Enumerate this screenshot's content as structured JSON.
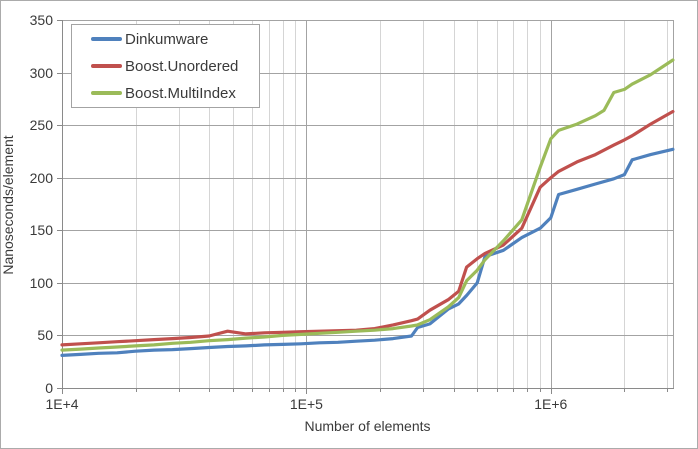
{
  "window": {
    "background": "#ffffff",
    "border_color": "#ababab"
  },
  "chart_data": {
    "type": "line",
    "title": "",
    "xlabel": "Number of elements",
    "ylabel": "Nanoseconds/element",
    "x_scale": "log10",
    "xlim": [
      10000,
      3162000
    ],
    "ylim": [
      0,
      350
    ],
    "y_tick_interval": 50,
    "y_tick_labels": [
      "0",
      "50",
      "100",
      "150",
      "200",
      "250",
      "300",
      "350"
    ],
    "x_ticks": [
      {
        "value": 10000,
        "label": "1E+4"
      },
      {
        "value": 100000,
        "label": "1E+5"
      },
      {
        "value": 1000000,
        "label": "1E+6"
      }
    ],
    "grid": "major-and-minor",
    "legend_position": "top-left",
    "colors": {
      "grid_major": "#a3a3a3",
      "grid_minor": "#d5d5d5",
      "axis": "#8a8a8a",
      "text": "#3a3a3a",
      "legend_border": "#a3a3a3"
    },
    "series": [
      {
        "name": "Dinkumware",
        "color": "#4f81bd",
        "points": [
          [
            10000,
            31
          ],
          [
            11900,
            32
          ],
          [
            14100,
            33
          ],
          [
            16800,
            33.5
          ],
          [
            20000,
            35
          ],
          [
            23800,
            36
          ],
          [
            28300,
            36.5
          ],
          [
            33600,
            37.5
          ],
          [
            40000,
            38.5
          ],
          [
            47600,
            39.5
          ],
          [
            56600,
            40
          ],
          [
            67300,
            41
          ],
          [
            80000,
            41.5
          ],
          [
            95100,
            42
          ],
          [
            113000,
            43
          ],
          [
            134500,
            43.5
          ],
          [
            160000,
            44.5
          ],
          [
            190300,
            45.5
          ],
          [
            226300,
            47
          ],
          [
            269100,
            49.5
          ],
          [
            285000,
            57.5
          ],
          [
            320000,
            61
          ],
          [
            380500,
            75
          ],
          [
            420000,
            80
          ],
          [
            452500,
            88
          ],
          [
            500000,
            100
          ],
          [
            538200,
            125
          ],
          [
            640000,
            131
          ],
          [
            761100,
            143
          ],
          [
            905100,
            152
          ],
          [
            1000000,
            162
          ],
          [
            1076400,
            184
          ],
          [
            1280000,
            189
          ],
          [
            1522200,
            194
          ],
          [
            1810200,
            199
          ],
          [
            2000000,
            203
          ],
          [
            2153000,
            217
          ],
          [
            2560000,
            222
          ],
          [
            3160000,
            227
          ]
        ]
      },
      {
        "name": "Boost.Unordered",
        "color": "#c0504d",
        "points": [
          [
            10000,
            41
          ],
          [
            11900,
            42
          ],
          [
            14100,
            43
          ],
          [
            16800,
            44
          ],
          [
            20000,
            45
          ],
          [
            23800,
            46
          ],
          [
            28300,
            47
          ],
          [
            33600,
            48
          ],
          [
            40000,
            49.5
          ],
          [
            47600,
            54
          ],
          [
            56600,
            51.5
          ],
          [
            67300,
            52.5
          ],
          [
            80000,
            53
          ],
          [
            95100,
            53.5
          ],
          [
            113000,
            54
          ],
          [
            134500,
            54.5
          ],
          [
            160000,
            55
          ],
          [
            190300,
            56.5
          ],
          [
            226300,
            60
          ],
          [
            269100,
            64
          ],
          [
            285000,
            65.5
          ],
          [
            320000,
            74
          ],
          [
            380500,
            84
          ],
          [
            420000,
            92
          ],
          [
            452500,
            115
          ],
          [
            500000,
            123
          ],
          [
            538200,
            128
          ],
          [
            640000,
            136
          ],
          [
            761100,
            152
          ],
          [
            905100,
            191
          ],
          [
            1000000,
            200
          ],
          [
            1076400,
            206
          ],
          [
            1280000,
            215
          ],
          [
            1522200,
            222
          ],
          [
            1810200,
            231
          ],
          [
            2000000,
            236
          ],
          [
            2153000,
            240
          ],
          [
            2560000,
            251
          ],
          [
            3160000,
            263
          ]
        ]
      },
      {
        "name": "Boost.MultiIndex",
        "color": "#9bbb59",
        "points": [
          [
            10000,
            36
          ],
          [
            11900,
            37
          ],
          [
            14100,
            38
          ],
          [
            16800,
            39
          ],
          [
            20000,
            40
          ],
          [
            23800,
            41
          ],
          [
            28300,
            42.5
          ],
          [
            33600,
            43.5
          ],
          [
            40000,
            45
          ],
          [
            47600,
            46
          ],
          [
            56600,
            47.5
          ],
          [
            67300,
            48.5
          ],
          [
            80000,
            50
          ],
          [
            95100,
            51
          ],
          [
            113000,
            52
          ],
          [
            134500,
            53
          ],
          [
            160000,
            54
          ],
          [
            190300,
            55
          ],
          [
            226300,
            56.5
          ],
          [
            269100,
            59
          ],
          [
            285000,
            60
          ],
          [
            320000,
            65
          ],
          [
            380500,
            77
          ],
          [
            420000,
            86
          ],
          [
            452500,
            102
          ],
          [
            500000,
            112
          ],
          [
            538200,
            122
          ],
          [
            640000,
            140
          ],
          [
            761100,
            160
          ],
          [
            905100,
            210
          ],
          [
            1000000,
            237
          ],
          [
            1076400,
            245
          ],
          [
            1280000,
            251
          ],
          [
            1522200,
            259
          ],
          [
            1650000,
            264
          ],
          [
            1810200,
            281
          ],
          [
            2000000,
            284
          ],
          [
            2153000,
            289
          ],
          [
            2560000,
            298
          ],
          [
            3160000,
            312
          ]
        ]
      }
    ]
  }
}
